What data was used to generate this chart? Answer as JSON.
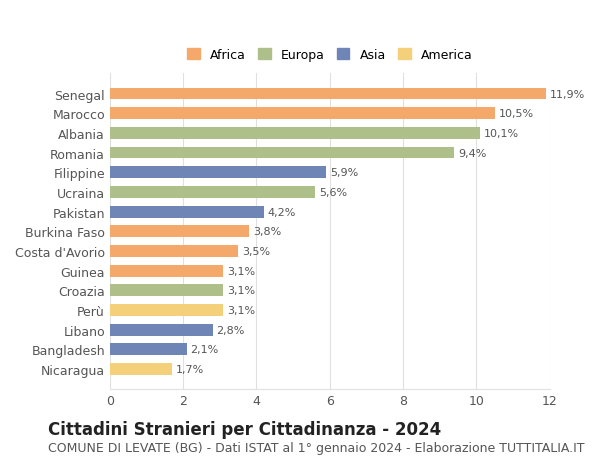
{
  "categories": [
    "Senegal",
    "Marocco",
    "Albania",
    "Romania",
    "Filippine",
    "Ucraina",
    "Pakistan",
    "Burkina Faso",
    "Costa d'Avorio",
    "Guinea",
    "Croazia",
    "Perù",
    "Libano",
    "Bangladesh",
    "Nicaragua"
  ],
  "values": [
    11.9,
    10.5,
    10.1,
    9.4,
    5.9,
    5.6,
    4.2,
    3.8,
    3.5,
    3.1,
    3.1,
    3.1,
    2.8,
    2.1,
    1.7
  ],
  "labels": [
    "11,9%",
    "10,5%",
    "10,1%",
    "9,4%",
    "5,9%",
    "5,6%",
    "4,2%",
    "3,8%",
    "3,5%",
    "3,1%",
    "3,1%",
    "3,1%",
    "2,8%",
    "2,1%",
    "1,7%"
  ],
  "continents": [
    "Africa",
    "Africa",
    "Europa",
    "Europa",
    "Asia",
    "Europa",
    "Asia",
    "Africa",
    "Africa",
    "Africa",
    "Europa",
    "America",
    "Asia",
    "Asia",
    "America"
  ],
  "continent_colors": {
    "Africa": "#F4A96A",
    "Europa": "#AEBF8A",
    "Asia": "#6E85B5",
    "America": "#F5D07A"
  },
  "legend_order": [
    "Africa",
    "Europa",
    "Asia",
    "America"
  ],
  "xlim": [
    0,
    12
  ],
  "xticks": [
    0,
    2,
    4,
    6,
    8,
    10,
    12
  ],
  "title": "Cittadini Stranieri per Cittadinanza - 2024",
  "subtitle": "COMUNE DI LEVATE (BG) - Dati ISTAT al 1° gennaio 2024 - Elaborazione TUTTITALIA.IT",
  "title_fontsize": 12,
  "subtitle_fontsize": 9,
  "label_fontsize": 8,
  "tick_fontsize": 9,
  "bar_height": 0.6,
  "background_color": "#ffffff",
  "grid_color": "#e0e0e0"
}
